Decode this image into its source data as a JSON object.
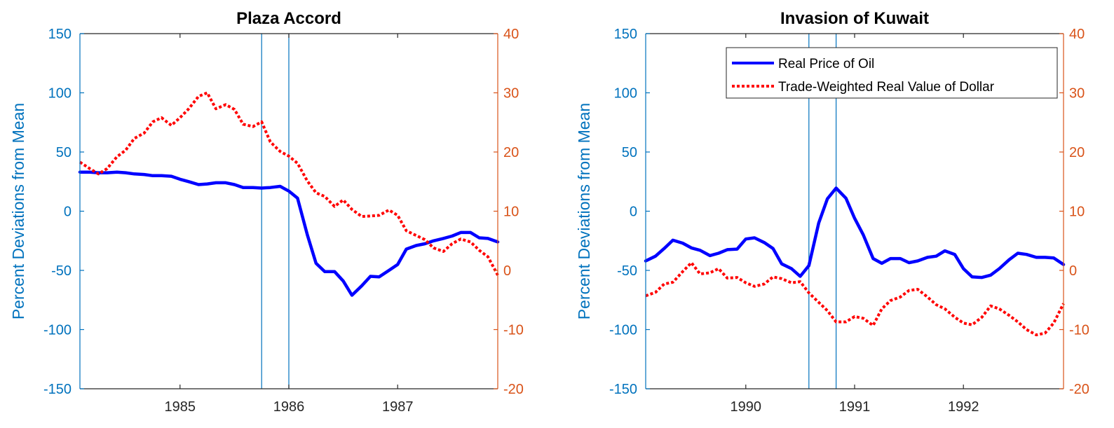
{
  "chart_data": [
    {
      "type": "line",
      "title": "Plaza Accord",
      "ylabel": "Percent Deviations from Mean",
      "ylim": [
        -150,
        150
      ],
      "y2lim": [
        -20,
        40
      ],
      "xlim": [
        1984.08,
        1987.92
      ],
      "x_ticks": [
        1985,
        1986,
        1987
      ],
      "x_tick_labels": [
        "1985",
        "1986",
        "1987"
      ],
      "y_ticks": [
        -150,
        -100,
        -50,
        0,
        50,
        100,
        150
      ],
      "y_tick_labels": [
        "-150",
        "-100",
        "-50",
        "0",
        "50",
        "100",
        "150"
      ],
      "y2_ticks": [
        -20,
        -10,
        0,
        10,
        20,
        30,
        40
      ],
      "y2_tick_labels": [
        "-20",
        "-10",
        "0",
        "10",
        "20",
        "30",
        "40"
      ],
      "vlines": [
        1985.75,
        1986.0
      ],
      "legend": null,
      "series": [
        {
          "axis": "left",
          "style": "solid",
          "color": "#0000ff",
          "points": [
            [
              1984.08,
              33
            ],
            [
              1984.17,
              33
            ],
            [
              1984.25,
              32.5
            ],
            [
              1984.33,
              32.5
            ],
            [
              1984.42,
              33
            ],
            [
              1984.5,
              32.5
            ],
            [
              1984.58,
              31.5
            ],
            [
              1984.67,
              31
            ],
            [
              1984.75,
              30
            ],
            [
              1984.83,
              30
            ],
            [
              1984.92,
              29.5
            ],
            [
              1985.0,
              27
            ],
            [
              1985.08,
              25
            ],
            [
              1985.17,
              22.5
            ],
            [
              1985.25,
              23
            ],
            [
              1985.33,
              24
            ],
            [
              1985.42,
              24
            ],
            [
              1985.5,
              22.5
            ],
            [
              1985.58,
              20
            ],
            [
              1985.67,
              20
            ],
            [
              1985.75,
              19.5
            ],
            [
              1985.83,
              20
            ],
            [
              1985.92,
              21
            ],
            [
              1986.0,
              17
            ],
            [
              1986.08,
              11
            ],
            [
              1986.17,
              -20
            ],
            [
              1986.25,
              -44
            ],
            [
              1986.33,
              -51
            ],
            [
              1986.42,
              -51
            ],
            [
              1986.5,
              -59
            ],
            [
              1986.58,
              -71
            ],
            [
              1986.67,
              -63
            ],
            [
              1986.75,
              -55
            ],
            [
              1986.83,
              -55.5
            ],
            [
              1986.92,
              -50
            ],
            [
              1987.0,
              -45
            ],
            [
              1987.08,
              -32
            ],
            [
              1987.17,
              -29
            ],
            [
              1987.25,
              -27.5
            ],
            [
              1987.33,
              -25
            ],
            [
              1987.42,
              -23
            ],
            [
              1987.5,
              -21
            ],
            [
              1987.58,
              -18
            ],
            [
              1987.67,
              -18
            ],
            [
              1987.75,
              -22.5
            ],
            [
              1987.83,
              -23
            ],
            [
              1987.92,
              -26
            ]
          ]
        },
        {
          "axis": "right",
          "style": "dotted",
          "color": "#ff0000",
          "points": [
            [
              1984.08,
              18.3
            ],
            [
              1984.17,
              17.2
            ],
            [
              1984.25,
              16.3
            ],
            [
              1984.33,
              17.2
            ],
            [
              1984.42,
              19.2
            ],
            [
              1984.5,
              20.3
            ],
            [
              1984.58,
              22.3
            ],
            [
              1984.67,
              23.2
            ],
            [
              1984.75,
              25.1
            ],
            [
              1984.83,
              25.8
            ],
            [
              1984.92,
              24.5
            ],
            [
              1985.0,
              25.8
            ],
            [
              1985.08,
              27.3
            ],
            [
              1985.17,
              29.4
            ],
            [
              1985.25,
              30
            ],
            [
              1985.33,
              27.3
            ],
            [
              1985.42,
              28
            ],
            [
              1985.5,
              27.2
            ],
            [
              1985.58,
              24.7
            ],
            [
              1985.67,
              24.3
            ],
            [
              1985.75,
              25.1
            ],
            [
              1985.83,
              21.7
            ],
            [
              1985.92,
              20.1
            ],
            [
              1986.0,
              19.3
            ],
            [
              1986.08,
              18.1
            ],
            [
              1986.17,
              15.1
            ],
            [
              1986.25,
              13.1
            ],
            [
              1986.33,
              12.5
            ],
            [
              1986.42,
              10.8
            ],
            [
              1986.5,
              11.9
            ],
            [
              1986.58,
              10.3
            ],
            [
              1986.67,
              9.1
            ],
            [
              1986.75,
              9.2
            ],
            [
              1986.83,
              9.3
            ],
            [
              1986.92,
              10.2
            ],
            [
              1987.0,
              9.3
            ],
            [
              1987.08,
              6.7
            ],
            [
              1987.17,
              5.9
            ],
            [
              1987.25,
              5.2
            ],
            [
              1987.33,
              3.8
            ],
            [
              1987.42,
              3.2
            ],
            [
              1987.5,
              4.5
            ],
            [
              1987.58,
              5.3
            ],
            [
              1987.67,
              4.8
            ],
            [
              1987.75,
              3.4
            ],
            [
              1987.83,
              2.3
            ],
            [
              1987.92,
              -0.8
            ]
          ]
        }
      ]
    },
    {
      "type": "line",
      "title": "Invasion of Kuwait",
      "ylabel": "Percent Deviations from Mean",
      "ylim": [
        -150,
        150
      ],
      "y2lim": [
        -20,
        40
      ],
      "xlim": [
        1989.08,
        1992.92
      ],
      "x_ticks": [
        1990,
        1991,
        1992
      ],
      "x_tick_labels": [
        "1990",
        "1991",
        "1992"
      ],
      "y_ticks": [
        -150,
        -100,
        -50,
        0,
        50,
        100,
        150
      ],
      "y_tick_labels": [
        "-150",
        "-100",
        "-50",
        "0",
        "50",
        "100",
        "150"
      ],
      "y2_ticks": [
        -20,
        -10,
        0,
        10,
        20,
        30,
        40
      ],
      "y2_tick_labels": [
        "-20",
        "-10",
        "0",
        "10",
        "20",
        "30",
        "40"
      ],
      "vlines": [
        1990.58,
        1990.83
      ],
      "legend": {
        "position": "top-right",
        "entries": [
          "Real Price of Oil",
          "Trade-Weighted Real Value of Dollar"
        ]
      },
      "series": [
        {
          "name": "Real Price of Oil",
          "axis": "left",
          "style": "solid",
          "color": "#0000ff",
          "points": [
            [
              1989.08,
              -42
            ],
            [
              1989.17,
              -38
            ],
            [
              1989.25,
              -31.5
            ],
            [
              1989.33,
              -24.5
            ],
            [
              1989.42,
              -27
            ],
            [
              1989.5,
              -31
            ],
            [
              1989.58,
              -33
            ],
            [
              1989.67,
              -37.5
            ],
            [
              1989.75,
              -35.5
            ],
            [
              1989.83,
              -32.5
            ],
            [
              1989.92,
              -32
            ],
            [
              1990.0,
              -23.5
            ],
            [
              1990.08,
              -22.5
            ],
            [
              1990.17,
              -26.5
            ],
            [
              1990.25,
              -31.5
            ],
            [
              1990.33,
              -44.5
            ],
            [
              1990.42,
              -48.5
            ],
            [
              1990.5,
              -55
            ],
            [
              1990.58,
              -46
            ],
            [
              1990.67,
              -10
            ],
            [
              1990.75,
              10.5
            ],
            [
              1990.83,
              19.5
            ],
            [
              1990.92,
              11
            ],
            [
              1991.0,
              -6
            ],
            [
              1991.08,
              -20
            ],
            [
              1991.17,
              -40
            ],
            [
              1991.25,
              -44
            ],
            [
              1991.33,
              -40
            ],
            [
              1991.42,
              -40
            ],
            [
              1991.5,
              -43.5
            ],
            [
              1991.58,
              -42
            ],
            [
              1991.67,
              -39
            ],
            [
              1991.75,
              -38
            ],
            [
              1991.83,
              -33.5
            ],
            [
              1991.92,
              -36.5
            ],
            [
              1992.0,
              -48.5
            ],
            [
              1992.08,
              -55.5
            ],
            [
              1992.17,
              -56
            ],
            [
              1992.25,
              -54
            ],
            [
              1992.33,
              -48.5
            ],
            [
              1992.42,
              -41
            ],
            [
              1992.5,
              -35.5
            ],
            [
              1992.58,
              -36.5
            ],
            [
              1992.67,
              -39
            ],
            [
              1992.75,
              -39
            ],
            [
              1992.83,
              -39.5
            ],
            [
              1992.92,
              -45
            ]
          ]
        },
        {
          "name": "Trade-Weighted Real Value of Dollar",
          "axis": "right",
          "style": "dotted",
          "color": "#ff0000",
          "points": [
            [
              1989.08,
              -4.3
            ],
            [
              1989.17,
              -3.7
            ],
            [
              1989.25,
              -2.3
            ],
            [
              1989.33,
              -2
            ],
            [
              1989.42,
              -0.2
            ],
            [
              1989.5,
              1.3
            ],
            [
              1989.58,
              -0.6
            ],
            [
              1989.67,
              -0.4
            ],
            [
              1989.75,
              0.3
            ],
            [
              1989.83,
              -1.3
            ],
            [
              1989.92,
              -1.2
            ],
            [
              1990.0,
              -2.1
            ],
            [
              1990.08,
              -2.7
            ],
            [
              1990.17,
              -2.3
            ],
            [
              1990.25,
              -1.1
            ],
            [
              1990.33,
              -1.4
            ],
            [
              1990.42,
              -2.1
            ],
            [
              1990.5,
              -1.9
            ],
            [
              1990.58,
              -3.8
            ],
            [
              1990.67,
              -5.4
            ],
            [
              1990.75,
              -6.8
            ],
            [
              1990.83,
              -8.7
            ],
            [
              1990.92,
              -8.7
            ],
            [
              1991.0,
              -7.8
            ],
            [
              1991.08,
              -8.1
            ],
            [
              1991.17,
              -9.3
            ],
            [
              1991.25,
              -6.5
            ],
            [
              1991.33,
              -5.1
            ],
            [
              1991.42,
              -4.5
            ],
            [
              1991.5,
              -3.4
            ],
            [
              1991.58,
              -3.2
            ],
            [
              1991.67,
              -4.5
            ],
            [
              1991.75,
              -5.8
            ],
            [
              1991.83,
              -6.5
            ],
            [
              1991.92,
              -7.9
            ],
            [
              1992.0,
              -8.9
            ],
            [
              1992.08,
              -9.2
            ],
            [
              1992.17,
              -7.9
            ],
            [
              1992.25,
              -6
            ],
            [
              1992.33,
              -6.5
            ],
            [
              1992.42,
              -7.6
            ],
            [
              1992.5,
              -8.7
            ],
            [
              1992.58,
              -10
            ],
            [
              1992.67,
              -10.9
            ],
            [
              1992.75,
              -10.6
            ],
            [
              1992.83,
              -8.9
            ],
            [
              1992.92,
              -5.6
            ]
          ]
        }
      ]
    }
  ]
}
